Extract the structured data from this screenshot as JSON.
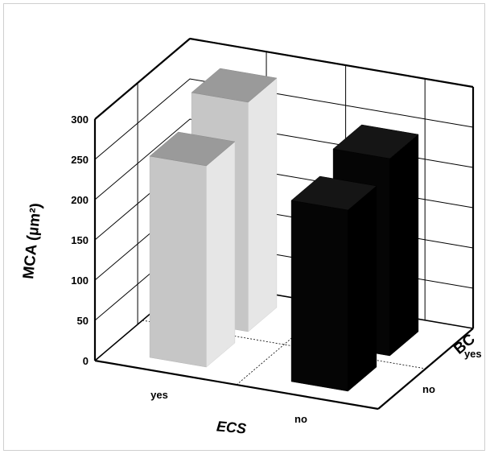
{
  "chart_data": {
    "type": "bar",
    "subtype": "3d-bar",
    "title": "",
    "xlabel": "ECS",
    "ylabel": "MCA (µm²)",
    "zlabel": "BC",
    "x_categories": [
      "yes",
      "no"
    ],
    "z_categories": [
      "no",
      "yes"
    ],
    "y_ticks": [
      "0",
      "50",
      "100",
      "150",
      "200",
      "250",
      "300"
    ],
    "ylim": [
      0,
      300
    ],
    "grid": true,
    "bars": [
      {
        "ecs": "yes",
        "bc": "no",
        "value": 250,
        "color": "#c6c6c6"
      },
      {
        "ecs": "yes",
        "bc": "yes",
        "value": 285,
        "color": "#c6c6c6"
      },
      {
        "ecs": "no",
        "bc": "no",
        "value": 225,
        "color": "#050505"
      },
      {
        "ecs": "no",
        "bc": "yes",
        "value": 245,
        "color": "#050505"
      }
    ]
  }
}
